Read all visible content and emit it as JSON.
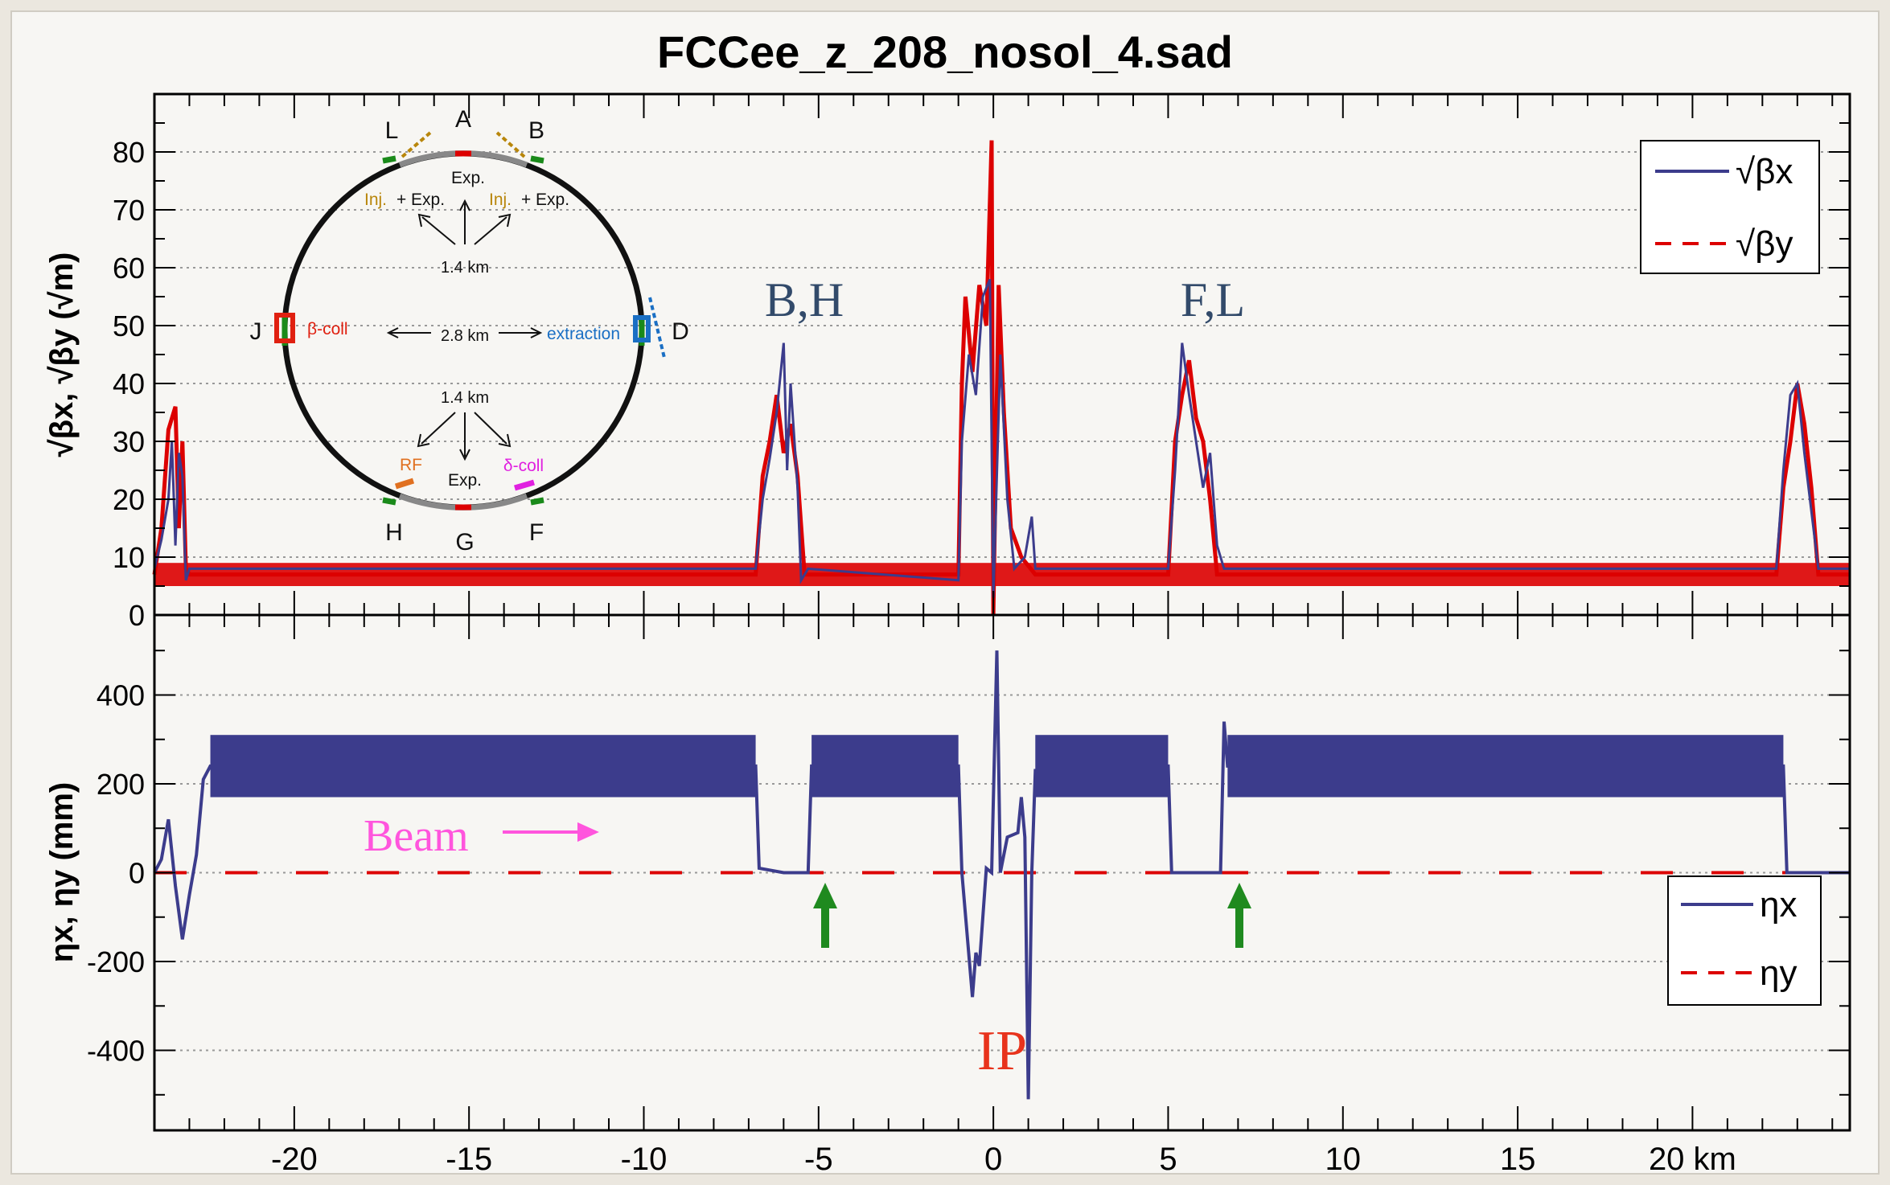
{
  "title": "FCCee_z_208_nosol_4.sad",
  "colors": {
    "beta_x": "#3c3c8c",
    "beta_y": "#dc0000",
    "eta_x": "#3c3c8c",
    "eta_y": "#dc0000",
    "label_dark": "#324a6a",
    "beam": "#ff55dd",
    "ip": "#e8331c",
    "arrow": "#1f8a1f",
    "panel": "#f7f6f3"
  },
  "chart_data": [
    {
      "type": "line",
      "ylabel": "√βx, √βy (√m)",
      "xlim": [
        -24,
        24.5
      ],
      "ylim": [
        0,
        90
      ],
      "yticks": [
        0,
        10,
        20,
        30,
        40,
        50,
        60,
        70,
        80
      ],
      "grid": "horizontal dotted",
      "legend_position": "top-right",
      "series": [
        {
          "name": "√βx",
          "style": "solid",
          "points": [
            [
              -24,
              8
            ],
            [
              -23.8,
              13
            ],
            [
              -23.6,
              20
            ],
            [
              -23.5,
              30
            ],
            [
              -23.4,
              12
            ],
            [
              -23.3,
              28
            ],
            [
              -23.2,
              24
            ],
            [
              -23.1,
              6
            ],
            [
              -23.0,
              8
            ],
            [
              -6.8,
              8
            ],
            [
              -6.6,
              20
            ],
            [
              -6.4,
              27
            ],
            [
              -6.2,
              35
            ],
            [
              -6.0,
              47
            ],
            [
              -5.9,
              25
            ],
            [
              -5.8,
              40
            ],
            [
              -5.6,
              22
            ],
            [
              -5.5,
              6
            ],
            [
              -5.3,
              8
            ],
            [
              -1.0,
              6
            ],
            [
              -0.9,
              30
            ],
            [
              -0.7,
              45
            ],
            [
              -0.5,
              38
            ],
            [
              -0.3,
              55
            ],
            [
              -0.1,
              58
            ],
            [
              0.0,
              3
            ],
            [
              0.2,
              45
            ],
            [
              0.4,
              20
            ],
            [
              0.6,
              8
            ],
            [
              0.9,
              10
            ],
            [
              1.1,
              17
            ],
            [
              1.2,
              8
            ],
            [
              5.0,
              8
            ],
            [
              5.2,
              25
            ],
            [
              5.4,
              47
            ],
            [
              5.6,
              38
            ],
            [
              5.8,
              30
            ],
            [
              6.0,
              22
            ],
            [
              6.2,
              28
            ],
            [
              6.4,
              12
            ],
            [
              6.6,
              8
            ],
            [
              22.4,
              8
            ],
            [
              22.6,
              25
            ],
            [
              22.8,
              38
            ],
            [
              23.0,
              40
            ],
            [
              23.2,
              28
            ],
            [
              23.4,
              18
            ],
            [
              23.6,
              8
            ],
            [
              24.5,
              8
            ]
          ]
        },
        {
          "name": "√βy",
          "style": "dashed",
          "points": [
            [
              -24,
              7
            ],
            [
              -23.8,
              15
            ],
            [
              -23.6,
              32
            ],
            [
              -23.4,
              36
            ],
            [
              -23.3,
              15
            ],
            [
              -23.2,
              30
            ],
            [
              -23.1,
              8
            ],
            [
              -23.0,
              7
            ],
            [
              -6.8,
              7
            ],
            [
              -6.6,
              24
            ],
            [
              -6.4,
              30
            ],
            [
              -6.2,
              38
            ],
            [
              -6.0,
              28
            ],
            [
              -5.8,
              33
            ],
            [
              -5.6,
              24
            ],
            [
              -5.4,
              7
            ],
            [
              -1.0,
              7
            ],
            [
              -0.9,
              40
            ],
            [
              -0.8,
              55
            ],
            [
              -0.6,
              42
            ],
            [
              -0.4,
              57
            ],
            [
              -0.2,
              50
            ],
            [
              -0.05,
              82
            ],
            [
              0.0,
              0
            ],
            [
              0.15,
              57
            ],
            [
              0.3,
              35
            ],
            [
              0.5,
              15
            ],
            [
              0.8,
              10
            ],
            [
              1.2,
              7
            ],
            [
              5.0,
              7
            ],
            [
              5.2,
              30
            ],
            [
              5.4,
              38
            ],
            [
              5.6,
              44
            ],
            [
              5.8,
              34
            ],
            [
              6.0,
              30
            ],
            [
              6.2,
              20
            ],
            [
              6.4,
              7
            ],
            [
              22.4,
              7
            ],
            [
              22.6,
              22
            ],
            [
              22.8,
              30
            ],
            [
              23.0,
              40
            ],
            [
              23.2,
              33
            ],
            [
              23.4,
              22
            ],
            [
              23.6,
              7
            ],
            [
              24.5,
              7
            ]
          ]
        }
      ],
      "annotations": [
        "B,H",
        "F,L"
      ]
    },
    {
      "type": "line",
      "ylabel": "ηx, ηy (mm)",
      "xlabel": "km",
      "xlim": [
        -24,
        24.5
      ],
      "ylim": [
        -580,
        580
      ],
      "yticks": [
        -400,
        -200,
        0,
        200,
        400
      ],
      "xticks": [
        -20,
        -15,
        -10,
        -5,
        0,
        5,
        10,
        15,
        20
      ],
      "xtick_labels": [
        "-20",
        "-15",
        "-10",
        "-5",
        "0",
        "5",
        "10",
        "15",
        "20 km"
      ],
      "grid": "horizontal dotted",
      "legend_position": "bottom-right",
      "series": [
        {
          "name": "ηx",
          "style": "solid",
          "points": [
            [
              -24,
              0
            ],
            [
              -23.8,
              30
            ],
            [
              -23.6,
              120
            ],
            [
              -23.4,
              -30
            ],
            [
              -23.2,
              -150
            ],
            [
              -23.0,
              -50
            ],
            [
              -22.8,
              40
            ],
            [
              -22.6,
              210
            ],
            [
              -22.4,
              240
            ],
            [
              -6.8,
              240
            ],
            [
              -6.7,
              10
            ],
            [
              -6.0,
              0
            ],
            [
              -5.3,
              0
            ],
            [
              -5.2,
              240
            ],
            [
              -1.0,
              240
            ],
            [
              -0.9,
              0
            ],
            [
              -0.6,
              -280
            ],
            [
              -0.5,
              -180
            ],
            [
              -0.4,
              -210
            ],
            [
              -0.2,
              10
            ],
            [
              -0.05,
              0
            ],
            [
              0.1,
              500
            ],
            [
              0.2,
              0
            ],
            [
              0.4,
              80
            ],
            [
              0.7,
              90
            ],
            [
              0.8,
              170
            ],
            [
              0.9,
              80
            ],
            [
              1.0,
              -510
            ],
            [
              1.1,
              0
            ],
            [
              1.2,
              230
            ],
            [
              5.0,
              240
            ],
            [
              5.1,
              0
            ],
            [
              6.5,
              0
            ],
            [
              6.6,
              340
            ],
            [
              6.7,
              240
            ],
            [
              22.6,
              240
            ],
            [
              22.7,
              0
            ],
            [
              24.5,
              0
            ]
          ],
          "band_regions": [
            [
              -22.4,
              -6.8
            ],
            [
              -5.2,
              -1.0
            ],
            [
              1.2,
              5.0
            ],
            [
              6.7,
              22.6
            ]
          ],
          "band_range": [
            170,
            310
          ]
        },
        {
          "name": "ηy",
          "style": "dashed",
          "points": [
            [
              -24,
              0
            ],
            [
              24.5,
              0
            ]
          ]
        }
      ],
      "annotations": [
        "Beam",
        "IP"
      ]
    }
  ],
  "inset": {
    "labels": {
      "A": "A",
      "B": "B",
      "D": "D",
      "F": "F",
      "G": "G",
      "H": "H",
      "J": "J",
      "L": "L",
      "exp_top": "Exp.",
      "inj": "Inj.",
      "plus_exp": "+ Exp.",
      "dist_top": "1.4 km",
      "dist_mid": "2.8 km",
      "dist_bottom": "1.4 km",
      "beta_coll": "β-coll",
      "extraction": "extraction",
      "rf": "RF",
      "exp_bottom": "Exp.",
      "delta_coll": "δ-coll"
    },
    "colors": {
      "inj": "#b8860b",
      "beta_coll": "#e02010",
      "extraction": "#1a6fc4",
      "rf": "#e07020",
      "delta_coll": "#e020e0"
    }
  }
}
